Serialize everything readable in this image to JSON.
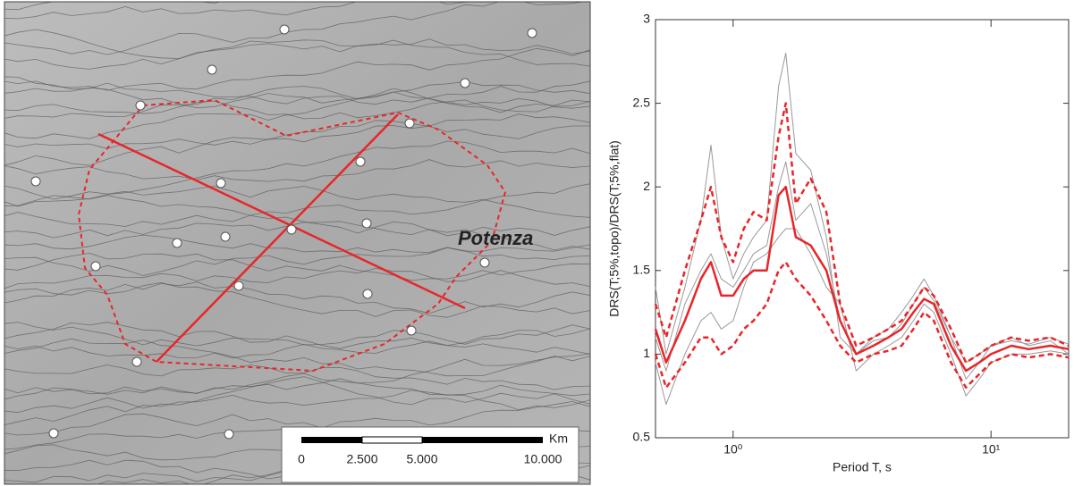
{
  "map": {
    "label": "Potenza",
    "scale_bar": {
      "unit": "Km",
      "labels": [
        "0",
        "2.500",
        "5.000",
        "10.000"
      ]
    }
  },
  "chart_data": {
    "type": "line",
    "x_label": "Period T, s",
    "y_label": "DRS(T;5%,topo)/DRS(T;5%,flat)",
    "log_x": true,
    "xlim": [
      0.5,
      20
    ],
    "ylim": [
      0.5,
      3
    ],
    "xticks": [
      {
        "value": 1,
        "label": "10⁰"
      },
      {
        "value": 10,
        "label": "10¹"
      }
    ],
    "yticks": [
      0.5,
      1,
      1.5,
      2,
      2.5,
      3
    ],
    "x": [
      0.5,
      0.55,
      0.65,
      0.75,
      0.82,
      0.9,
      1.0,
      1.1,
      1.2,
      1.35,
      1.5,
      1.6,
      1.75,
      2.0,
      2.3,
      2.6,
      3.0,
      3.5,
      4.0,
      4.5,
      5.0,
      5.5,
      6.0,
      7.0,
      8.0,
      9.0,
      10,
      12,
      14,
      17,
      20
    ],
    "series": [
      {
        "color": "#999999",
        "dash": false,
        "width": 1,
        "values": [
          1.4,
          1.0,
          1.4,
          1.8,
          2.25,
          1.7,
          1.45,
          1.6,
          1.7,
          1.8,
          2.6,
          2.8,
          2.2,
          2.1,
          1.7,
          1.1,
          1.0,
          1.1,
          1.15,
          1.25,
          1.35,
          1.45,
          1.35,
          1.1,
          0.85,
          0.95,
          1.05,
          1.1,
          1.05,
          1.08,
          1.0
        ]
      },
      {
        "color": "#999999",
        "dash": false,
        "width": 1,
        "values": [
          0.95,
          0.7,
          1.0,
          1.2,
          1.25,
          1.15,
          1.2,
          1.4,
          1.55,
          1.6,
          1.7,
          1.75,
          1.75,
          1.6,
          1.4,
          1.3,
          0.9,
          1.0,
          1.05,
          1.1,
          1.2,
          1.3,
          1.25,
          1.0,
          0.75,
          0.85,
          0.95,
          1.0,
          1.0,
          1.02,
          1.0
        ]
      },
      {
        "color": "#999999",
        "dash": false,
        "width": 1,
        "values": [
          1.1,
          0.9,
          1.3,
          1.5,
          1.6,
          1.45,
          1.4,
          1.5,
          1.6,
          1.65,
          2.0,
          2.15,
          1.8,
          1.9,
          1.6,
          1.2,
          1.0,
          1.08,
          1.1,
          1.18,
          1.3,
          1.4,
          1.32,
          1.1,
          0.95,
          1.0,
          1.05,
          1.08,
          1.06,
          1.1,
          1.06
        ]
      },
      {
        "color": "#e8262a",
        "dash": true,
        "width": 2.5,
        "values": [
          1.3,
          1.1,
          1.5,
          1.8,
          2.0,
          1.7,
          1.55,
          1.75,
          1.85,
          1.8,
          2.3,
          2.5,
          1.9,
          2.05,
          1.85,
          1.3,
          1.05,
          1.1,
          1.15,
          1.2,
          1.3,
          1.4,
          1.35,
          1.15,
          0.95,
          1.0,
          1.05,
          1.1,
          1.08,
          1.1,
          1.05
        ]
      },
      {
        "color": "#e8262a",
        "dash": true,
        "width": 2.5,
        "values": [
          1.0,
          0.8,
          0.95,
          1.1,
          1.1,
          1.0,
          1.05,
          1.15,
          1.2,
          1.3,
          1.5,
          1.55,
          1.45,
          1.35,
          1.2,
          1.05,
          0.95,
          1.0,
          1.02,
          1.05,
          1.15,
          1.25,
          1.2,
          0.95,
          0.8,
          0.88,
          0.95,
          1.0,
          0.98,
          1.0,
          0.98
        ]
      },
      {
        "color": "#e8262a",
        "dash": false,
        "width": 2.5,
        "values": [
          1.15,
          0.95,
          1.2,
          1.45,
          1.55,
          1.35,
          1.35,
          1.45,
          1.5,
          1.5,
          1.95,
          2.0,
          1.7,
          1.65,
          1.5,
          1.2,
          1.0,
          1.05,
          1.1,
          1.15,
          1.25,
          1.33,
          1.3,
          1.05,
          0.9,
          0.95,
          1.0,
          1.05,
          1.03,
          1.05,
          1.03
        ]
      }
    ]
  }
}
